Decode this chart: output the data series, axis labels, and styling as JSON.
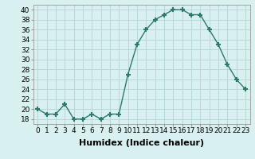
{
  "x": [
    0,
    1,
    2,
    3,
    4,
    5,
    6,
    7,
    8,
    9,
    10,
    11,
    12,
    13,
    14,
    15,
    16,
    17,
    18,
    19,
    20,
    21,
    22,
    23
  ],
  "y": [
    20,
    19,
    19,
    21,
    18,
    18,
    19,
    18,
    19,
    19,
    27,
    33,
    36,
    38,
    39,
    40,
    40,
    39,
    39,
    36,
    33,
    29,
    26,
    24
  ],
  "line_color": "#2d7a6a",
  "marker": "+",
  "marker_size": 5,
  "marker_lw": 1.5,
  "bg_color": "#d8f0f0",
  "grid_color": "#b8d8d8",
  "xlabel": "Humidex (Indice chaleur)",
  "ylim": [
    17,
    41
  ],
  "yticks": [
    18,
    20,
    22,
    24,
    26,
    28,
    30,
    32,
    34,
    36,
    38,
    40
  ],
  "xlim": [
    -0.5,
    23.5
  ],
  "xlabel_fontsize": 8,
  "tick_fontsize": 6.5,
  "line_width": 1.0
}
